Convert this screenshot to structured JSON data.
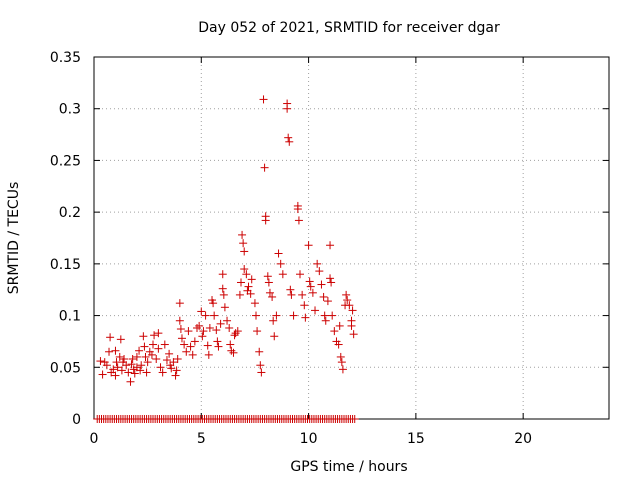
{
  "chart_data": {
    "type": "scatter",
    "title": "Day 052 of 2021, SRMTID for receiver dgar",
    "xlabel": "GPS time / hours",
    "ylabel": "SRMTID / TECUs",
    "xlim": [
      0,
      24
    ],
    "ylim": [
      0,
      0.35
    ],
    "x_ticks": [
      0,
      5,
      10,
      15,
      20
    ],
    "y_ticks": [
      0,
      0.05,
      0.1,
      0.15,
      0.2,
      0.25,
      0.3,
      0.35
    ],
    "x_tick_labels": [
      "0",
      "5",
      "10",
      "15",
      "20"
    ],
    "y_tick_labels": [
      "0",
      "0.05",
      "0.1",
      "0.15",
      "0.2",
      "0.25",
      "0.3",
      "0.35"
    ],
    "grid": true,
    "marker": "plus",
    "color": "#cc0000",
    "series": [
      {
        "name": "SRMTID",
        "points": [
          [
            0.3,
            0.056
          ],
          [
            0.4,
            0.043
          ],
          [
            0.5,
            0.055
          ],
          [
            0.6,
            0.052
          ],
          [
            0.7,
            0.065
          ],
          [
            0.75,
            0.079
          ],
          [
            0.8,
            0.045
          ],
          [
            0.9,
            0.048
          ],
          [
            1.0,
            0.066
          ],
          [
            1.0,
            0.042
          ],
          [
            1.05,
            0.055
          ],
          [
            1.1,
            0.05
          ],
          [
            1.2,
            0.06
          ],
          [
            1.25,
            0.077
          ],
          [
            1.3,
            0.047
          ],
          [
            1.35,
            0.055
          ],
          [
            1.4,
            0.058
          ],
          [
            1.5,
            0.052
          ],
          [
            1.6,
            0.045
          ],
          [
            1.7,
            0.036
          ],
          [
            1.75,
            0.053
          ],
          [
            1.8,
            0.058
          ],
          [
            1.85,
            0.048
          ],
          [
            1.9,
            0.044
          ],
          [
            2.0,
            0.06
          ],
          [
            2.0,
            0.05
          ],
          [
            2.1,
            0.066
          ],
          [
            2.15,
            0.047
          ],
          [
            2.2,
            0.052
          ],
          [
            2.3,
            0.08
          ],
          [
            2.35,
            0.07
          ],
          [
            2.4,
            0.06
          ],
          [
            2.45,
            0.045
          ],
          [
            2.5,
            0.055
          ],
          [
            2.6,
            0.065
          ],
          [
            2.7,
            0.062
          ],
          [
            2.75,
            0.072
          ],
          [
            2.8,
            0.081
          ],
          [
            2.9,
            0.058
          ],
          [
            3.0,
            0.068
          ],
          [
            3.0,
            0.083
          ],
          [
            3.1,
            0.05
          ],
          [
            3.2,
            0.045
          ],
          [
            3.3,
            0.072
          ],
          [
            3.4,
            0.057
          ],
          [
            3.5,
            0.063
          ],
          [
            3.55,
            0.052
          ],
          [
            3.6,
            0.049
          ],
          [
            3.7,
            0.055
          ],
          [
            3.8,
            0.042
          ],
          [
            3.85,
            0.047
          ],
          [
            3.9,
            0.058
          ],
          [
            4.0,
            0.112
          ],
          [
            4.0,
            0.095
          ],
          [
            4.05,
            0.087
          ],
          [
            4.1,
            0.078
          ],
          [
            4.2,
            0.072
          ],
          [
            4.3,
            0.065
          ],
          [
            4.4,
            0.085
          ],
          [
            4.5,
            0.07
          ],
          [
            4.6,
            0.062
          ],
          [
            4.7,
            0.075
          ],
          [
            4.8,
            0.088
          ],
          [
            4.9,
            0.09
          ],
          [
            5.0,
            0.104
          ],
          [
            5.05,
            0.08
          ],
          [
            5.1,
            0.085
          ],
          [
            5.2,
            0.1
          ],
          [
            5.3,
            0.071
          ],
          [
            5.35,
            0.062
          ],
          [
            5.4,
            0.088
          ],
          [
            5.5,
            0.115
          ],
          [
            5.55,
            0.112
          ],
          [
            5.6,
            0.1
          ],
          [
            5.7,
            0.086
          ],
          [
            5.75,
            0.075
          ],
          [
            5.8,
            0.07
          ],
          [
            5.9,
            0.092
          ],
          [
            6.0,
            0.14
          ],
          [
            6.0,
            0.126
          ],
          [
            6.05,
            0.12
          ],
          [
            6.1,
            0.108
          ],
          [
            6.2,
            0.095
          ],
          [
            6.3,
            0.088
          ],
          [
            6.35,
            0.072
          ],
          [
            6.4,
            0.066
          ],
          [
            6.5,
            0.064
          ],
          [
            6.55,
            0.081
          ],
          [
            6.6,
            0.083
          ],
          [
            6.7,
            0.085
          ],
          [
            6.8,
            0.12
          ],
          [
            6.85,
            0.132
          ],
          [
            6.9,
            0.178
          ],
          [
            6.95,
            0.17
          ],
          [
            7.0,
            0.162
          ],
          [
            7.0,
            0.145
          ],
          [
            7.1,
            0.14
          ],
          [
            7.15,
            0.124
          ],
          [
            7.2,
            0.128
          ],
          [
            7.3,
            0.121
          ],
          [
            7.35,
            0.135
          ],
          [
            7.5,
            0.112
          ],
          [
            7.55,
            0.1
          ],
          [
            7.6,
            0.085
          ],
          [
            7.7,
            0.065
          ],
          [
            7.75,
            0.052
          ],
          [
            7.8,
            0.045
          ],
          [
            7.9,
            0.309
          ],
          [
            7.95,
            0.243
          ],
          [
            8.0,
            0.196
          ],
          [
            8.0,
            0.192
          ],
          [
            8.1,
            0.138
          ],
          [
            8.15,
            0.132
          ],
          [
            8.2,
            0.122
          ],
          [
            8.3,
            0.118
          ],
          [
            8.35,
            0.095
          ],
          [
            8.4,
            0.08
          ],
          [
            8.5,
            0.1
          ],
          [
            8.6,
            0.16
          ],
          [
            8.7,
            0.15
          ],
          [
            8.8,
            0.14
          ],
          [
            9.0,
            0.305
          ],
          [
            9.0,
            0.3
          ],
          [
            9.05,
            0.272
          ],
          [
            9.1,
            0.268
          ],
          [
            9.15,
            0.125
          ],
          [
            9.2,
            0.12
          ],
          [
            9.3,
            0.1
          ],
          [
            9.5,
            0.206
          ],
          [
            9.5,
            0.203
          ],
          [
            9.55,
            0.192
          ],
          [
            9.6,
            0.14
          ],
          [
            9.7,
            0.12
          ],
          [
            9.8,
            0.11
          ],
          [
            9.85,
            0.098
          ],
          [
            10.0,
            0.168
          ],
          [
            10.05,
            0.133
          ],
          [
            10.1,
            0.128
          ],
          [
            10.2,
            0.122
          ],
          [
            10.3,
            0.105
          ],
          [
            10.4,
            0.15
          ],
          [
            10.5,
            0.143
          ],
          [
            10.6,
            0.13
          ],
          [
            10.7,
            0.118
          ],
          [
            10.75,
            0.1
          ],
          [
            10.8,
            0.095
          ],
          [
            10.9,
            0.114
          ],
          [
            11.0,
            0.168
          ],
          [
            11.0,
            0.136
          ],
          [
            11.05,
            0.132
          ],
          [
            11.1,
            0.1
          ],
          [
            11.2,
            0.085
          ],
          [
            11.3,
            0.075
          ],
          [
            11.4,
            0.072
          ],
          [
            11.45,
            0.09
          ],
          [
            11.5,
            0.06
          ],
          [
            11.55,
            0.055
          ],
          [
            11.6,
            0.048
          ],
          [
            11.7,
            0.11
          ],
          [
            11.75,
            0.12
          ],
          [
            11.8,
            0.115
          ],
          [
            11.9,
            0.11
          ],
          [
            12.0,
            0.095
          ],
          [
            12.0,
            0.09
          ],
          [
            12.05,
            0.105
          ],
          [
            12.1,
            0.082
          ]
        ],
        "baseline": {
          "x_start": 0.15,
          "x_end": 12.2,
          "x_step": 0.1,
          "y": 0
        }
      }
    ]
  }
}
